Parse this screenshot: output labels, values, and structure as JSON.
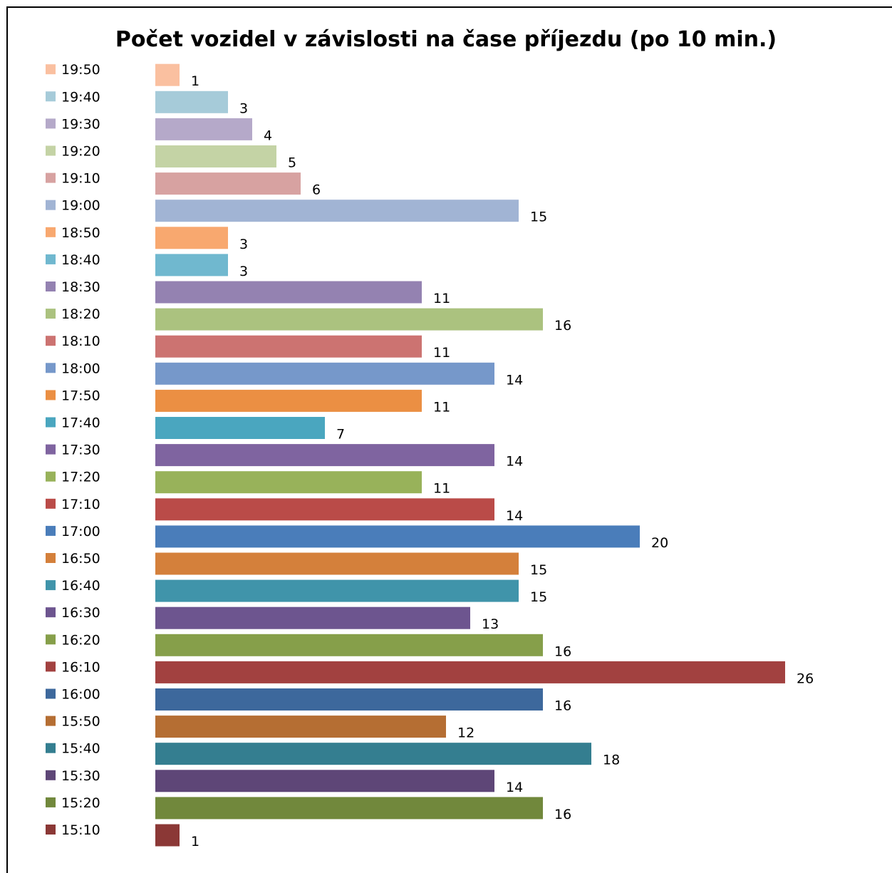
{
  "chart_data": {
    "type": "bar",
    "orientation": "horizontal",
    "title": "Počet vozidel v závislosti na čase příjezdu (po 10 min.)",
    "xlabel": "",
    "ylabel": "",
    "grid": false,
    "axes_visible": false,
    "legend_position": "left",
    "xlim": [
      0,
      26
    ],
    "categories": [
      "15:10",
      "15:20",
      "15:30",
      "15:40",
      "15:50",
      "16:00",
      "16:10",
      "16:20",
      "16:30",
      "16:40",
      "16:50",
      "17:00",
      "17:10",
      "17:20",
      "17:30",
      "17:40",
      "17:50",
      "18:00",
      "18:10",
      "18:20",
      "18:30",
      "18:40",
      "18:50",
      "19:00",
      "19:10",
      "19:20",
      "19:30",
      "19:40",
      "19:50"
    ],
    "values": [
      1,
      16,
      14,
      18,
      12,
      16,
      26,
      16,
      13,
      15,
      15,
      20,
      14,
      11,
      14,
      7,
      11,
      14,
      11,
      16,
      11,
      3,
      3,
      15,
      6,
      5,
      4,
      3,
      1
    ],
    "colors": [
      "#8B3836",
      "#71883C",
      "#5E4677",
      "#347E90",
      "#B56E33",
      "#3D689C",
      "#A24140",
      "#869F4A",
      "#6D558F",
      "#4094AA",
      "#D4803B",
      "#4A7DBA",
      "#BA4B48",
      "#98B25A",
      "#7F64A0",
      "#4AA6BF",
      "#EB8F43",
      "#7698CA",
      "#CC7371",
      "#ABC27F",
      "#9482B1",
      "#70B8CF",
      "#F8A86F",
      "#A1B4D4",
      "#D7A2A1",
      "#C4D3A5",
      "#B5A9C9",
      "#A6CBD9",
      "#FAC0A0"
    ]
  }
}
